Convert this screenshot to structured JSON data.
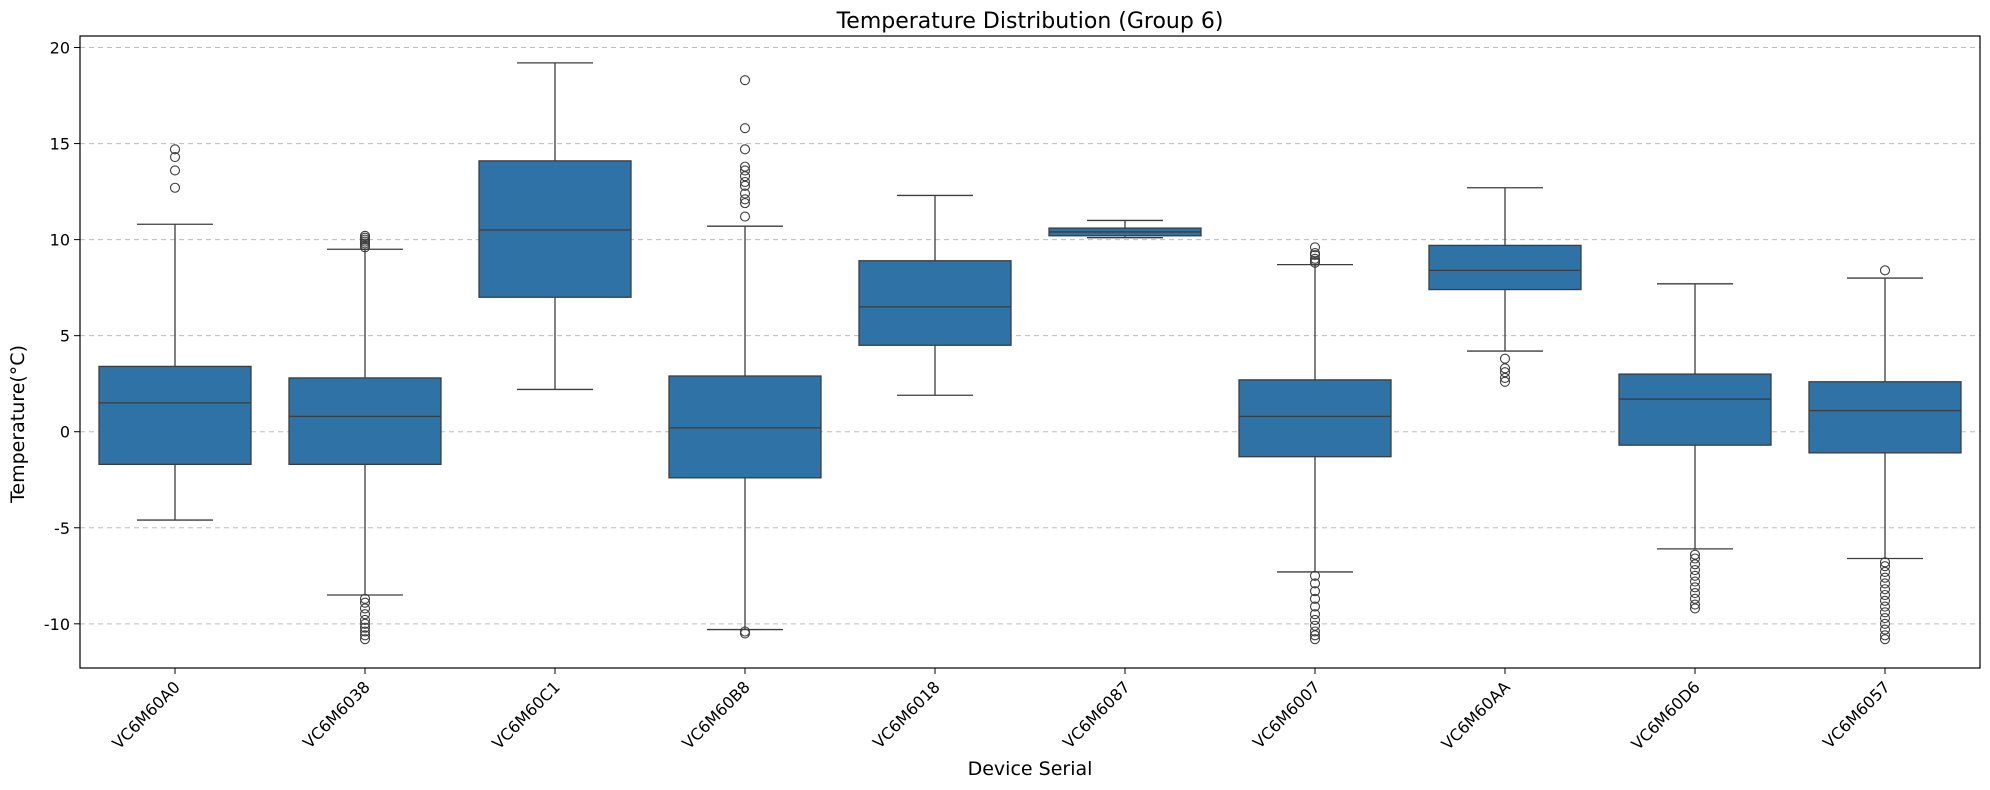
{
  "chart_data": {
    "type": "box",
    "title": "Temperature Distribution (Group 6)",
    "xlabel": "Device Serial",
    "ylabel": "Temperature(°C)",
    "ylim": [
      -12.3,
      20.6
    ],
    "yticks": [
      -10,
      -5,
      0,
      5,
      10,
      15,
      20
    ],
    "grid": "y-dashed",
    "box_color": "#2e72a6",
    "categories": [
      "VC6M60A0",
      "VC6M6038",
      "VC6M60C1",
      "VC6M60B8",
      "VC6M6018",
      "VC6M6087",
      "VC6M6007",
      "VC6M60AA",
      "VC6M60D6",
      "VC6M6057"
    ],
    "boxes": [
      {
        "category": "VC6M60A0",
        "whisker_low": -4.6,
        "q1": -1.7,
        "median": 1.5,
        "q3": 3.4,
        "whisker_high": 10.8,
        "outliers": [
          12.7,
          13.6,
          14.3,
          14.7
        ]
      },
      {
        "category": "VC6M6038",
        "whisker_low": -8.5,
        "q1": -1.7,
        "median": 0.8,
        "q3": 2.8,
        "whisker_high": 9.5,
        "outliers": [
          -10.8,
          -10.6,
          -10.4,
          -10.2,
          -10.0,
          -9.8,
          -9.5,
          -9.2,
          -8.9,
          -8.7,
          9.6,
          9.7,
          9.8,
          9.9,
          10.0,
          10.1,
          10.2
        ]
      },
      {
        "category": "VC6M60C1",
        "whisker_low": 2.2,
        "q1": 7.0,
        "median": 10.5,
        "q3": 14.1,
        "whisker_high": 19.2,
        "outliers": []
      },
      {
        "category": "VC6M60B8",
        "whisker_low": -10.3,
        "q1": -2.4,
        "median": 0.2,
        "q3": 2.9,
        "whisker_high": 10.7,
        "outliers": [
          -10.5,
          -10.4,
          11.2,
          11.9,
          12.1,
          12.4,
          12.8,
          13.0,
          13.3,
          13.6,
          13.8,
          14.7,
          15.8,
          18.3
        ]
      },
      {
        "category": "VC6M6018",
        "whisker_low": 1.9,
        "q1": 4.5,
        "median": 6.5,
        "q3": 8.9,
        "whisker_high": 12.3,
        "outliers": []
      },
      {
        "category": "VC6M6087",
        "whisker_low": 10.1,
        "q1": 10.2,
        "median": 10.4,
        "q3": 10.6,
        "whisker_high": 11.0,
        "outliers": []
      },
      {
        "category": "VC6M6007",
        "whisker_low": -7.3,
        "q1": -1.3,
        "median": 0.8,
        "q3": 2.7,
        "whisker_high": 8.7,
        "outliers": [
          -10.8,
          -10.6,
          -10.4,
          -10.1,
          -9.8,
          -9.5,
          -9.1,
          -8.7,
          -8.3,
          -7.9,
          -7.5,
          8.8,
          8.9,
          9.0,
          9.2,
          9.3,
          9.6
        ]
      },
      {
        "category": "VC6M60AA",
        "whisker_low": 4.2,
        "q1": 7.4,
        "median": 8.4,
        "q3": 9.7,
        "whisker_high": 12.7,
        "outliers": [
          2.6,
          2.8,
          3.1,
          3.3,
          3.8
        ]
      },
      {
        "category": "VC6M60D6",
        "whisker_low": -6.1,
        "q1": -0.7,
        "median": 1.7,
        "q3": 3.0,
        "whisker_high": 7.7,
        "outliers": [
          -9.2,
          -9.0,
          -8.7,
          -8.4,
          -8.1,
          -7.8,
          -7.5,
          -7.2,
          -6.9,
          -6.6,
          -6.4
        ]
      },
      {
        "category": "VC6M6057",
        "whisker_low": -6.6,
        "q1": -1.1,
        "median": 1.1,
        "q3": 2.6,
        "whisker_high": 8.0,
        "outliers": [
          -10.8,
          -10.6,
          -10.3,
          -10.0,
          -9.7,
          -9.4,
          -9.1,
          -8.8,
          -8.5,
          -8.2,
          -7.9,
          -7.6,
          -7.3,
          -7.0,
          -6.8,
          8.4
        ]
      }
    ]
  }
}
